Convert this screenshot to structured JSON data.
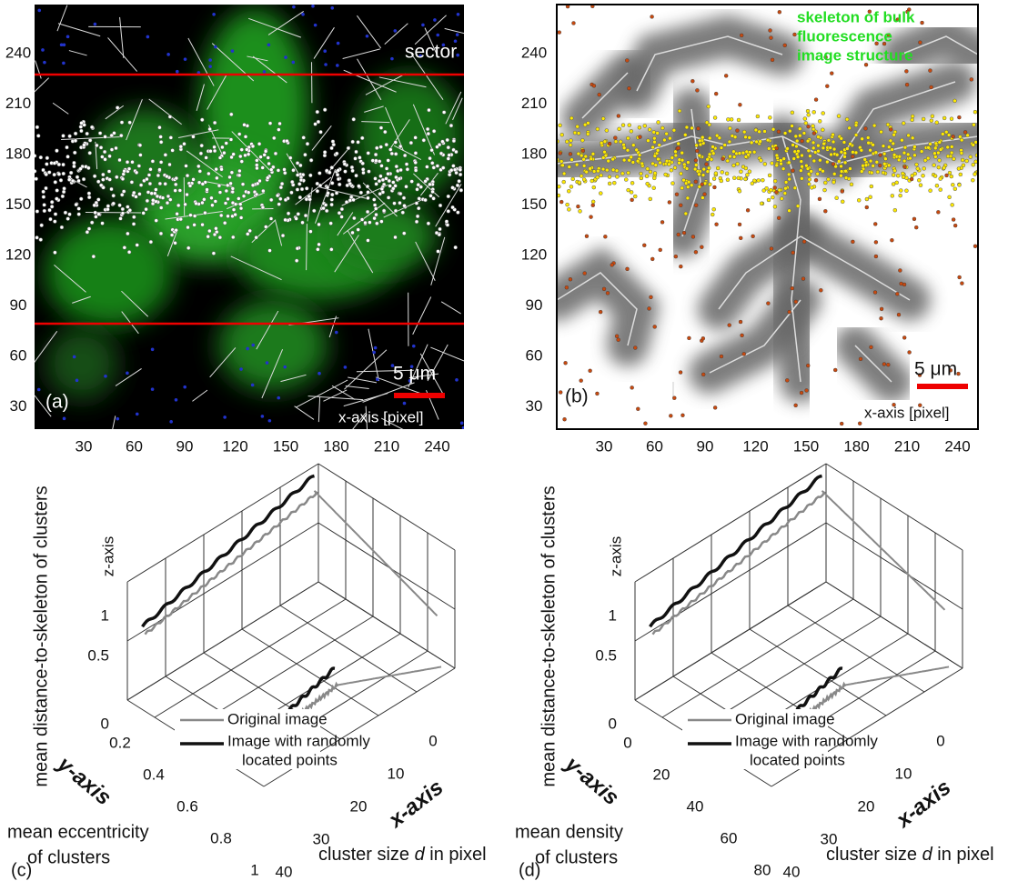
{
  "panel_a": {
    "label": "(a)",
    "sector": "sector",
    "scale": "5 μm",
    "x_axis": "x-axis [pixel]",
    "yticks": [
      240,
      210,
      180,
      150,
      120,
      90,
      60,
      30
    ],
    "xticks": [
      30,
      60,
      90,
      120,
      150,
      180,
      210,
      240
    ]
  },
  "panel_b": {
    "label": "(b)",
    "note": [
      "skeleton of bulk",
      "fluorescence",
      "image structure"
    ],
    "scale": "5 μm",
    "x_axis": "x-axis [pixel]",
    "yticks": [
      240,
      210,
      180,
      150,
      120,
      90,
      60,
      30
    ],
    "xticks": [
      30,
      60,
      90,
      120,
      150,
      180,
      210,
      240
    ]
  },
  "panel_c": {
    "label": "(c)",
    "z_title": "mean distance-to-skeleton of clusters",
    "z_axis": "z-axis",
    "y_axis": "y-axis",
    "x_axis": "x-axis",
    "zticks": [
      1,
      0.5,
      0
    ],
    "yticks": [
      0.2,
      0.4,
      0.6,
      0.8,
      1
    ],
    "xticks": [
      40,
      30,
      20,
      10,
      0
    ],
    "y_title": [
      "mean eccentricity",
      "of clusters"
    ],
    "x_title": [
      "cluster size ",
      "d",
      " in pixel"
    ],
    "legend": [
      "Original image",
      "Image with randomly",
      "located points"
    ]
  },
  "panel_d": {
    "label": "(d)",
    "z_title": "mean distance-to-skeleton of clusters",
    "z_axis": "z-axis",
    "y_axis": "y-axis",
    "x_axis": "x-axis",
    "zticks": [
      1,
      0.5,
      0
    ],
    "yticks": [
      0,
      20,
      40,
      60,
      80
    ],
    "xticks": [
      40,
      30,
      20,
      10,
      0
    ],
    "y_title": [
      "mean density",
      "of clusters"
    ],
    "x_title": [
      "cluster size ",
      "d",
      " in pixel"
    ],
    "legend": [
      "Original image",
      "Image with randomly",
      "located points"
    ]
  }
}
